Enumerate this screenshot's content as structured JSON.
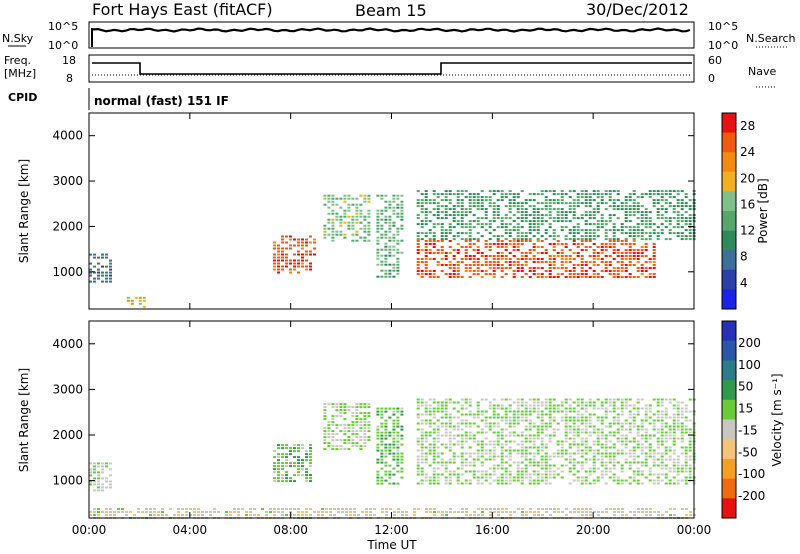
{
  "header": {
    "radar": "Fort Hays East (fitACF)",
    "beam": "Beam 15",
    "date": "30/Dec/2012"
  },
  "status": {
    "nsky_label": "N.Sky",
    "nsearch_label": "N.Search",
    "freq_label_top": "Freq.",
    "freq_label_unit": "[MHz]",
    "nave_label": "Nave",
    "cpid_label": "CPID",
    "cpid_text": "normal (fast) 151 IF",
    "noise_ticks_left": [
      "10^5",
      "10^0"
    ],
    "noise_ticks_right": [
      "10^5",
      "10^0"
    ],
    "freq_ticks": [
      "18",
      "8"
    ],
    "nave_ticks": [
      "60",
      "0"
    ]
  },
  "colors": {
    "power_scale": [
      "#1c23e8",
      "#2a3fa8",
      "#3c6f9c",
      "#2f8a5a",
      "#56a86a",
      "#7fc08a",
      "#f0b020",
      "#f58a10",
      "#f25a10",
      "#e81010"
    ],
    "velocity_scale": [
      "#2431b8",
      "#2a56a8",
      "#2c7a8a",
      "#2f9a50",
      "#6acb3a",
      "#c8c8c0",
      "#f6c37a",
      "#f5a020",
      "#f26a10",
      "#e81010"
    ]
  },
  "chart_data": [
    {
      "type": "heatmap",
      "title": "",
      "xlabel": "Time UT",
      "ylabel": "Slant Range [km]",
      "x_ticks": [
        "00:00",
        "04:00",
        "08:00",
        "12:00",
        "16:00",
        "20:00",
        "00:00"
      ],
      "y_ticks": [
        "1000",
        "2000",
        "3000",
        "4000"
      ],
      "y_range": [
        180,
        4500
      ],
      "colorbar": {
        "label": "Power [dB]",
        "ticks": [
          "4",
          "8",
          "12",
          "16",
          "20",
          "24",
          "28"
        ],
        "range": [
          0,
          30
        ]
      },
      "regions": [
        {
          "t": [
            0.0,
            0.9
          ],
          "r": [
            800,
            1400
          ],
          "value": 8
        },
        {
          "t": [
            1.5,
            2.2
          ],
          "r": [
            250,
            450
          ],
          "value": 20
        },
        {
          "t": [
            7.3,
            9.0
          ],
          "r": [
            1000,
            1800
          ],
          "value": 26
        },
        {
          "t": [
            9.3,
            11.2
          ],
          "r": [
            1700,
            2700
          ],
          "value": 16
        },
        {
          "t": [
            11.4,
            12.5
          ],
          "r": [
            900,
            2700
          ],
          "value": 14
        },
        {
          "t": [
            13.0,
            22.5
          ],
          "r": [
            900,
            1700
          ],
          "value": 26
        },
        {
          "t": [
            13.0,
            24.0
          ],
          "r": [
            1700,
            2800
          ],
          "value": 12
        }
      ]
    },
    {
      "type": "heatmap",
      "title": "",
      "xlabel": "Time UT",
      "ylabel": "Slant Range [km]",
      "x_ticks": [
        "00:00",
        "04:00",
        "08:00",
        "12:00",
        "16:00",
        "20:00",
        "00:00"
      ],
      "y_ticks": [
        "1000",
        "2000",
        "3000",
        "4000"
      ],
      "y_range": [
        180,
        4500
      ],
      "colorbar": {
        "label": "Velocity [m s⁻¹]",
        "ticks": [
          "200",
          "100",
          "50",
          "15",
          "-15",
          "-50",
          "-100",
          "-200"
        ],
        "range": [
          -250,
          250
        ]
      },
      "regions": [
        {
          "t": [
            0.0,
            0.9
          ],
          "r": [
            800,
            1400
          ],
          "value": 0
        },
        {
          "t": [
            7.3,
            8.8
          ],
          "r": [
            1000,
            1800
          ],
          "value": 30
        },
        {
          "t": [
            9.3,
            11.2
          ],
          "r": [
            1700,
            2700
          ],
          "value": 0
        },
        {
          "t": [
            11.4,
            12.5
          ],
          "r": [
            900,
            2600
          ],
          "value": 40
        },
        {
          "t": [
            13.0,
            24.0
          ],
          "r": [
            900,
            2800
          ],
          "value": 0
        },
        {
          "t": [
            0.0,
            24.0
          ],
          "r": [
            180,
            400
          ],
          "value": -40
        }
      ]
    }
  ]
}
